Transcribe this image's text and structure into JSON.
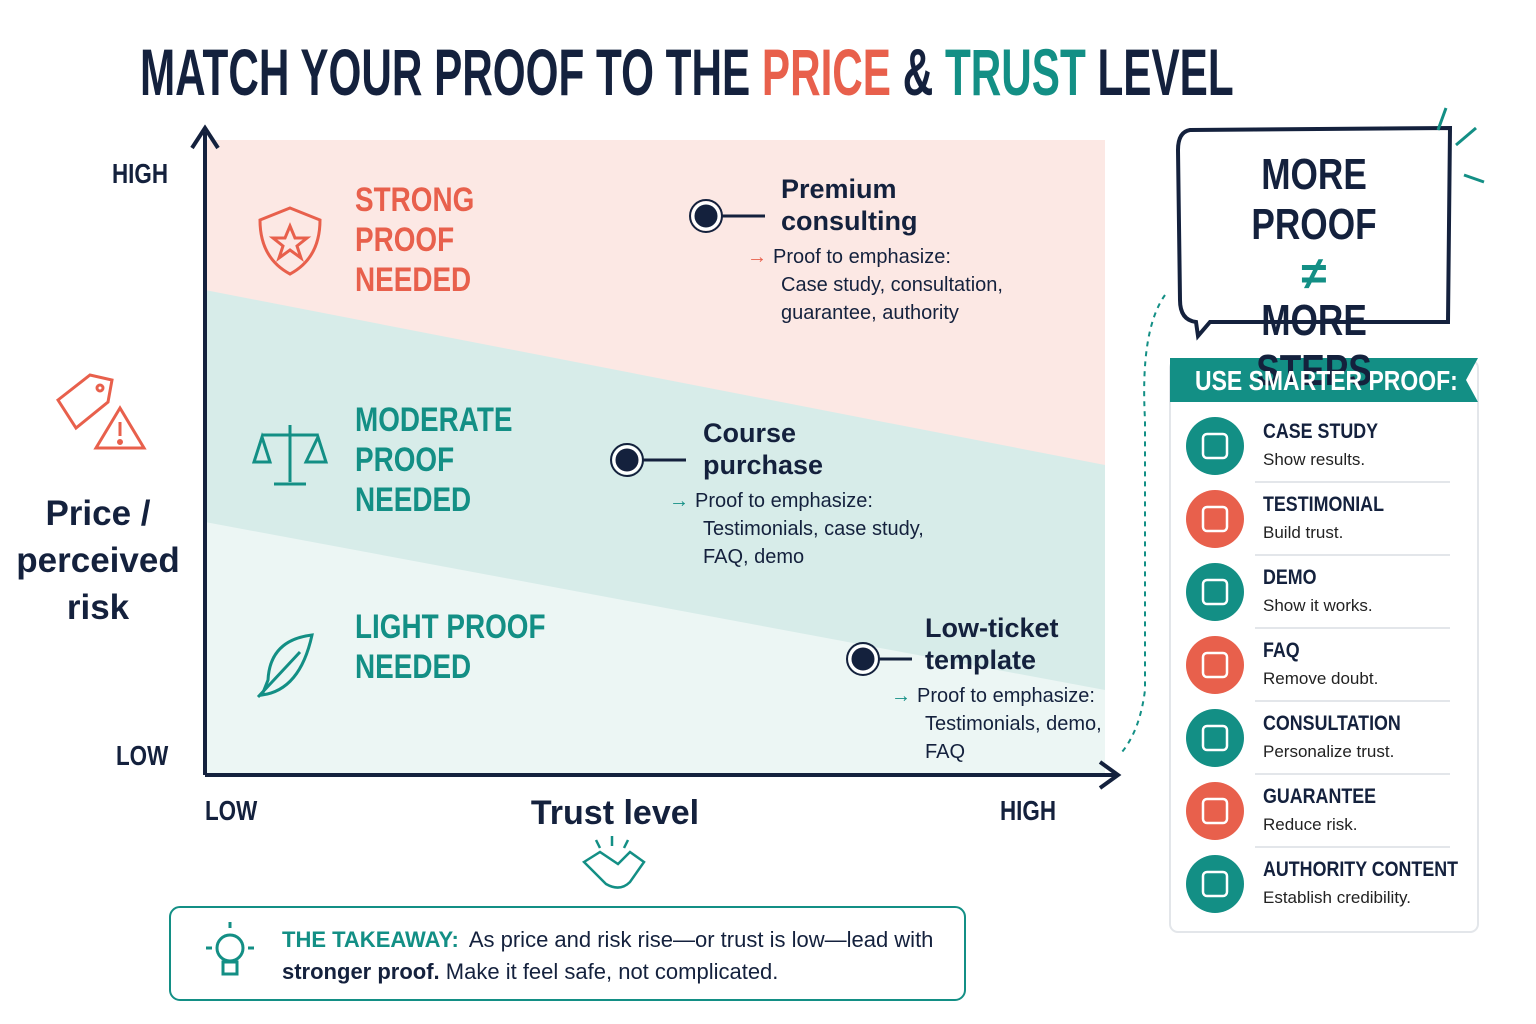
{
  "title": {
    "parts": [
      "MATCH YOUR PROOF TO THE",
      "PRICE",
      "&",
      "TRUST",
      "LEVEL"
    ]
  },
  "y_axis": {
    "label": "Price / perceived risk",
    "high": "HIGH",
    "low": "LOW"
  },
  "x_axis": {
    "label": "Trust level",
    "low": "LOW",
    "high": "HIGH"
  },
  "zones": [
    {
      "label": "STRONG PROOF NEEDED"
    },
    {
      "label": "MODERATE PROOF NEEDED"
    },
    {
      "label": "LIGHT PROOF NEEDED"
    }
  ],
  "examples": [
    {
      "name": "Premium consulting",
      "lead": "Proof to emphasize:",
      "proof": "Case study, consultation, guarantee, authority"
    },
    {
      "name": "Course purchase",
      "lead": "Proof to emphasize:",
      "proof": "Testimonials, case study, FAQ, demo"
    },
    {
      "name": "Low-ticket template",
      "lead": "Proof to emphasize:",
      "proof": "Testimonials, demo, FAQ"
    }
  ],
  "callout": {
    "line1": "MORE PROOF",
    "symbol": "≠",
    "line2": "MORE STEPS"
  },
  "panel": {
    "title": "USE SMARTER PROOF:",
    "items": [
      {
        "name": "CASE STUDY",
        "desc": "Show results."
      },
      {
        "name": "TESTIMONIAL",
        "desc": "Build trust."
      },
      {
        "name": "DEMO",
        "desc": "Show it works."
      },
      {
        "name": "FAQ",
        "desc": "Remove doubt."
      },
      {
        "name": "CONSULTATION",
        "desc": "Personalize trust."
      },
      {
        "name": "GUARANTEE",
        "desc": "Reduce risk."
      },
      {
        "name": "AUTHORITY CONTENT",
        "desc": "Establish credibility."
      }
    ]
  },
  "takeaway": {
    "label": "THE TAKEAWAY:",
    "text_1": "As price and risk rise—or trust is low—lead with",
    "bold": "stronger proof.",
    "text_2": "Make it feel safe, not complicated."
  }
}
